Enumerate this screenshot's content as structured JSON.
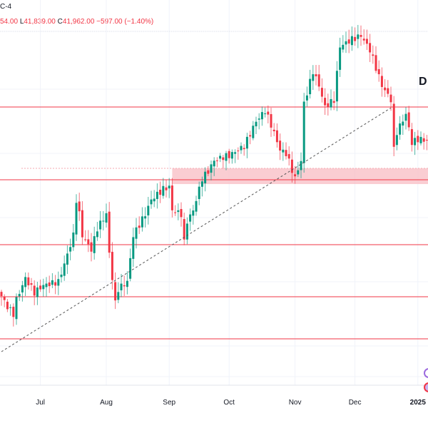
{
  "header": {
    "timezone_fragment": "C-4",
    "high_fragment": "54.00",
    "low_label": "L",
    "low": "41,839.00",
    "close_label": "C",
    "close": "41,962.00",
    "change": "−597.00 (−1.40%)"
  },
  "annotation": "D",
  "colors": {
    "up": "#089981",
    "down": "#f23645",
    "level": "#f23645",
    "zone": "#f8bcc3",
    "trend": "#555555"
  },
  "chart_data": {
    "type": "candlestick",
    "x_tick_labels": [
      {
        "label": "Jul",
        "day": 13
      },
      {
        "label": "Aug",
        "day": 35
      },
      {
        "label": "Sep",
        "day": 56
      },
      {
        "label": "Oct",
        "day": 76
      },
      {
        "label": "Nov",
        "day": 98
      },
      {
        "label": "Dec",
        "day": 118
      },
      {
        "label": "2025",
        "day": 139,
        "bold": true
      }
    ],
    "close_keypoints": [
      [
        0,
        37493
      ],
      [
        2,
        37185
      ],
      [
        4,
        36980
      ],
      [
        5,
        37390
      ],
      [
        8,
        38005
      ],
      [
        11,
        37595
      ],
      [
        14,
        37800
      ],
      [
        19,
        37903
      ],
      [
        21,
        38415
      ],
      [
        24,
        39235
      ],
      [
        25,
        40260
      ],
      [
        26,
        39850
      ],
      [
        27,
        39235
      ],
      [
        30,
        38825
      ],
      [
        32,
        39440
      ],
      [
        35,
        39850
      ],
      [
        36,
        38723
      ],
      [
        38,
        37288
      ],
      [
        39,
        37698
      ],
      [
        42,
        37903
      ],
      [
        44,
        39235
      ],
      [
        48,
        39850
      ],
      [
        50,
        40260
      ],
      [
        54,
        40568
      ],
      [
        56,
        40629
      ],
      [
        57,
        39953
      ],
      [
        60,
        39850
      ],
      [
        61,
        39030
      ],
      [
        62,
        39645
      ],
      [
        64,
        39953
      ],
      [
        67,
        40875
      ],
      [
        69,
        41080
      ],
      [
        71,
        41388
      ],
      [
        74,
        41490
      ],
      [
        76,
        41531
      ],
      [
        81,
        41798
      ],
      [
        85,
        42516
      ],
      [
        88,
        42823
      ],
      [
        90,
        42413
      ],
      [
        93,
        41695
      ],
      [
        95,
        41593
      ],
      [
        98,
        40875
      ],
      [
        100,
        41388
      ],
      [
        101,
        43028
      ],
      [
        104,
        43951
      ],
      [
        106,
        43541
      ],
      [
        108,
        42926
      ],
      [
        111,
        43131
      ],
      [
        113,
        44668
      ],
      [
        117,
        44873
      ],
      [
        120,
        44976
      ],
      [
        123,
        44566
      ],
      [
        125,
        44053
      ],
      [
        127,
        43541
      ],
      [
        130,
        43131
      ],
      [
        131,
        41695
      ],
      [
        132,
        42208
      ],
      [
        135,
        42721
      ],
      [
        137,
        41900
      ],
      [
        139,
        42003
      ],
      [
        142,
        41962
      ]
    ],
    "horizontal_levels": [
      42926,
      40835,
      38969,
      37472,
      36263
    ],
    "zone": {
      "from_day": 57,
      "top": 41162,
      "bottom": 40711
    },
    "trendline": {
      "start": [
        0,
        35894
      ],
      "end": [
        130,
        42900
      ],
      "style": "dashed"
    },
    "grid": true
  }
}
